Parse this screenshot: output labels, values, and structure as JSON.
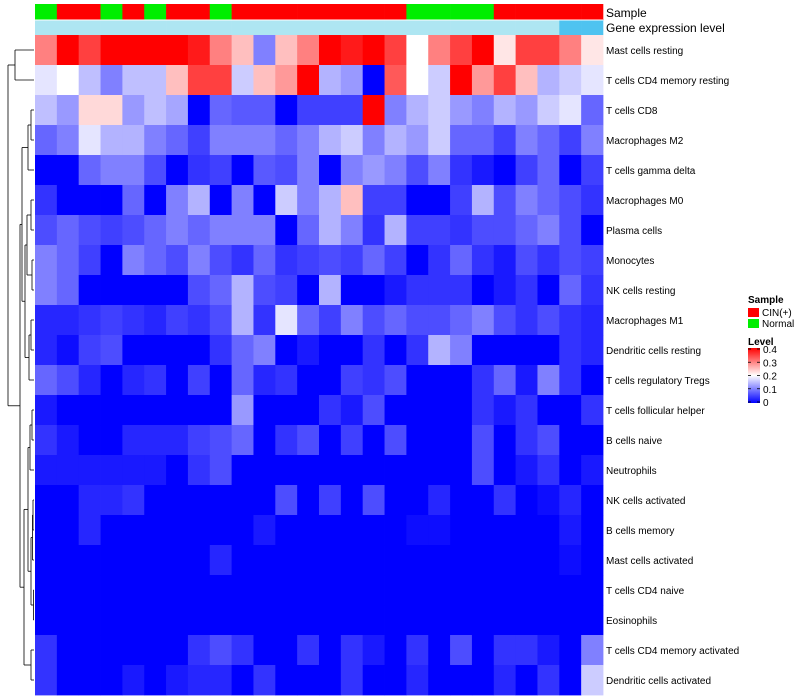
{
  "chart_data": {
    "type": "heatmap",
    "title": "",
    "annotation_labels": {
      "sample": "Sample",
      "gene_expression": "Gene expression level"
    },
    "sample_annotation": [
      "Normal",
      "CIN(+)",
      "CIN(+)",
      "Normal",
      "CIN(+)",
      "Normal",
      "CIN(+)",
      "CIN(+)",
      "Normal",
      "CIN(+)",
      "CIN(+)",
      "CIN(+)",
      "CIN(+)",
      "CIN(+)",
      "CIN(+)",
      "CIN(+)",
      "CIN(+)",
      "Normal",
      "Normal",
      "Normal",
      "Normal",
      "CIN(+)",
      "CIN(+)",
      "CIN(+)",
      "CIN(+)",
      "CIN(+)"
    ],
    "gene_expression_annotation": [
      0.6,
      0.6,
      0.6,
      0.6,
      0.6,
      0.6,
      0.6,
      0.6,
      0.6,
      0.6,
      0.6,
      0.6,
      0.6,
      0.6,
      0.6,
      0.6,
      0.6,
      0.6,
      0.6,
      0.6,
      0.6,
      0.6,
      0.6,
      0.6,
      0.9,
      0.9
    ],
    "annotation_colors": {
      "CIN(+)": "#ff0000",
      "Normal": "#00ee00",
      "gene_expression_low": "#aee6f2",
      "gene_expression_high": "#4fc3f0"
    },
    "rows": [
      "Mast cells resting",
      "T cells CD4 memory resting",
      "T cells CD8",
      "Macrophages M2",
      "T cells gamma delta",
      "Macrophages M0",
      "Plasma cells",
      "Monocytes",
      "NK cells resting",
      "Macrophages M1",
      "Dendritic cells resting",
      "T cells regulatory  Tregs",
      "T cells follicular helper",
      "B cells naive",
      "Neutrophils",
      "NK cells activated",
      "B cells memory",
      "Mast cells activated",
      "T cells CD4 naive",
      "Eosinophils",
      "T cells CD4 memory activated",
      "Dendritic cells activated"
    ],
    "values": [
      [
        0.3,
        0.4,
        0.35,
        0.4,
        0.4,
        0.4,
        0.4,
        0.38,
        0.3,
        0.25,
        0.1,
        0.25,
        0.3,
        0.4,
        0.38,
        0.4,
        0.35,
        0.2,
        0.3,
        0.35,
        0.4,
        0.22,
        0.35,
        0.35,
        0.3,
        0.22
      ],
      [
        0.18,
        0.2,
        0.15,
        0.1,
        0.15,
        0.15,
        0.25,
        0.35,
        0.35,
        0.16,
        0.25,
        0.28,
        0.4,
        0.14,
        0.12,
        0.0,
        0.33,
        0.2,
        0.16,
        0.4,
        0.28,
        0.35,
        0.25,
        0.14,
        0.16,
        0.18
      ],
      [
        0.15,
        0.12,
        0.23,
        0.23,
        0.12,
        0.15,
        0.13,
        0.0,
        0.08,
        0.07,
        0.07,
        0.0,
        0.05,
        0.05,
        0.05,
        0.4,
        0.1,
        0.14,
        0.16,
        0.12,
        0.1,
        0.14,
        0.12,
        0.16,
        0.18,
        0.08
      ],
      [
        0.08,
        0.1,
        0.18,
        0.14,
        0.14,
        0.1,
        0.08,
        0.05,
        0.1,
        0.1,
        0.1,
        0.08,
        0.1,
        0.14,
        0.16,
        0.1,
        0.14,
        0.12,
        0.16,
        0.08,
        0.08,
        0.05,
        0.1,
        0.08,
        0.05,
        0.1
      ],
      [
        0.0,
        0.0,
        0.08,
        0.1,
        0.1,
        0.06,
        0.0,
        0.04,
        0.05,
        0.0,
        0.07,
        0.06,
        0.1,
        0.0,
        0.1,
        0.12,
        0.1,
        0.06,
        0.1,
        0.04,
        0.02,
        0.0,
        0.05,
        0.08,
        0.0,
        0.05
      ],
      [
        0.04,
        0.0,
        0.0,
        0.0,
        0.08,
        0.0,
        0.1,
        0.14,
        0.0,
        0.1,
        0.0,
        0.16,
        0.1,
        0.14,
        0.25,
        0.05,
        0.05,
        0.0,
        0.0,
        0.05,
        0.14,
        0.06,
        0.1,
        0.08,
        0.06,
        0.04
      ],
      [
        0.06,
        0.08,
        0.06,
        0.05,
        0.06,
        0.08,
        0.1,
        0.08,
        0.1,
        0.1,
        0.1,
        0.0,
        0.08,
        0.14,
        0.1,
        0.04,
        0.14,
        0.05,
        0.05,
        0.04,
        0.06,
        0.06,
        0.08,
        0.1,
        0.06,
        0.0
      ],
      [
        0.1,
        0.08,
        0.05,
        0.0,
        0.1,
        0.08,
        0.06,
        0.1,
        0.06,
        0.04,
        0.08,
        0.04,
        0.05,
        0.06,
        0.05,
        0.08,
        0.05,
        0.0,
        0.04,
        0.08,
        0.04,
        0.02,
        0.06,
        0.04,
        0.06,
        0.05
      ],
      [
        0.1,
        0.08,
        0.0,
        0.0,
        0.0,
        0.0,
        0.0,
        0.06,
        0.08,
        0.14,
        0.06,
        0.05,
        0.0,
        0.14,
        0.0,
        0.0,
        0.02,
        0.04,
        0.04,
        0.04,
        0.0,
        0.02,
        0.04,
        0.0,
        0.08,
        0.04
      ],
      [
        0.03,
        0.03,
        0.04,
        0.05,
        0.04,
        0.03,
        0.05,
        0.04,
        0.06,
        0.14,
        0.04,
        0.18,
        0.08,
        0.05,
        0.1,
        0.06,
        0.08,
        0.06,
        0.06,
        0.08,
        0.1,
        0.06,
        0.04,
        0.06,
        0.04,
        0.03
      ],
      [
        0.03,
        0.01,
        0.05,
        0.06,
        0.0,
        0.0,
        0.0,
        0.0,
        0.04,
        0.08,
        0.1,
        0.0,
        0.02,
        0.0,
        0.0,
        0.04,
        0.0,
        0.04,
        0.14,
        0.1,
        0.0,
        0.0,
        0.0,
        0.0,
        0.04,
        0.03
      ],
      [
        0.08,
        0.06,
        0.03,
        0.0,
        0.03,
        0.04,
        0.0,
        0.05,
        0.0,
        0.08,
        0.03,
        0.04,
        0.0,
        0.0,
        0.05,
        0.04,
        0.06,
        0.0,
        0.0,
        0.0,
        0.04,
        0.08,
        0.02,
        0.1,
        0.04,
        0.0
      ],
      [
        0.02,
        0.0,
        0.0,
        0.0,
        0.0,
        0.0,
        0.0,
        0.0,
        0.0,
        0.12,
        0.0,
        0.0,
        0.0,
        0.04,
        0.02,
        0.06,
        0.0,
        0.0,
        0.0,
        0.0,
        0.04,
        0.02,
        0.04,
        0.0,
        0.0,
        0.04
      ],
      [
        0.04,
        0.02,
        0.0,
        0.0,
        0.03,
        0.03,
        0.03,
        0.05,
        0.06,
        0.08,
        0.0,
        0.04,
        0.06,
        0.0,
        0.05,
        0.0,
        0.06,
        0.0,
        0.0,
        0.0,
        0.06,
        0.0,
        0.04,
        0.06,
        0.0,
        0.0
      ],
      [
        0.02,
        0.02,
        0.02,
        0.02,
        0.02,
        0.02,
        0.0,
        0.04,
        0.06,
        0.0,
        0.0,
        0.0,
        0.0,
        0.0,
        0.0,
        0.0,
        0.0,
        0.0,
        0.0,
        0.0,
        0.06,
        0.0,
        0.02,
        0.04,
        0.0,
        0.02
      ],
      [
        0.0,
        0.0,
        0.03,
        0.03,
        0.04,
        0.0,
        0.0,
        0.0,
        0.0,
        0.0,
        0.0,
        0.06,
        0.0,
        0.05,
        0.0,
        0.06,
        0.0,
        0.0,
        0.03,
        0.0,
        0.0,
        0.04,
        0.0,
        0.01,
        0.03,
        0.0
      ],
      [
        0.0,
        0.0,
        0.03,
        0.0,
        0.0,
        0.0,
        0.0,
        0.0,
        0.0,
        0.0,
        0.02,
        0.0,
        0.0,
        0.0,
        0.0,
        0.0,
        0.0,
        0.01,
        0.01,
        0.0,
        0.0,
        0.0,
        0.0,
        0.0,
        0.02,
        0.0
      ],
      [
        0.0,
        0.0,
        0.0,
        0.0,
        0.0,
        0.0,
        0.0,
        0.0,
        0.03,
        0.0,
        0.0,
        0.0,
        0.0,
        0.0,
        0.0,
        0.0,
        0.0,
        0.0,
        0.0,
        0.0,
        0.0,
        0.0,
        0.0,
        0.0,
        0.01,
        0.0
      ],
      [
        0.0,
        0.0,
        0.0,
        0.0,
        0.0,
        0.0,
        0.0,
        0.0,
        0.0,
        0.0,
        0.0,
        0.0,
        0.0,
        0.0,
        0.0,
        0.0,
        0.0,
        0.0,
        0.0,
        0.0,
        0.0,
        0.0,
        0.0,
        0.0,
        0.0,
        0.0
      ],
      [
        0.0,
        0.0,
        0.0,
        0.0,
        0.0,
        0.0,
        0.0,
        0.0,
        0.0,
        0.0,
        0.0,
        0.0,
        0.0,
        0.0,
        0.0,
        0.0,
        0.0,
        0.0,
        0.0,
        0.0,
        0.0,
        0.0,
        0.0,
        0.0,
        0.0,
        0.0
      ],
      [
        0.04,
        0.0,
        0.0,
        0.0,
        0.0,
        0.0,
        0.0,
        0.04,
        0.06,
        0.04,
        0.0,
        0.0,
        0.04,
        0.0,
        0.04,
        0.02,
        0.0,
        0.04,
        0.0,
        0.06,
        0.0,
        0.04,
        0.04,
        0.02,
        0.0,
        0.1
      ],
      [
        0.04,
        0.0,
        0.0,
        0.0,
        0.02,
        0.0,
        0.02,
        0.03,
        0.03,
        0.0,
        0.04,
        0.0,
        0.0,
        0.0,
        0.04,
        0.0,
        0.0,
        0.03,
        0.0,
        0.0,
        0.0,
        0.03,
        0.0,
        0.04,
        0.0,
        0.16
      ]
    ],
    "color_scale": {
      "min": 0,
      "max": 0.4,
      "low": "#0000ff",
      "mid": "#ffffff",
      "high": "#ff0000"
    },
    "legend": {
      "sample_title": "Sample",
      "sample_items": [
        {
          "label": "CIN(+)",
          "color": "#ff0000"
        },
        {
          "label": "Normal",
          "color": "#00ee00"
        }
      ],
      "level_title": "Level",
      "level_ticks": [
        "0.4",
        "0.3",
        "0.2",
        "0.1",
        "0"
      ],
      "level_tick_values": [
        0.4,
        0.3,
        0.2,
        0.1,
        0
      ],
      "placement": "right"
    }
  }
}
